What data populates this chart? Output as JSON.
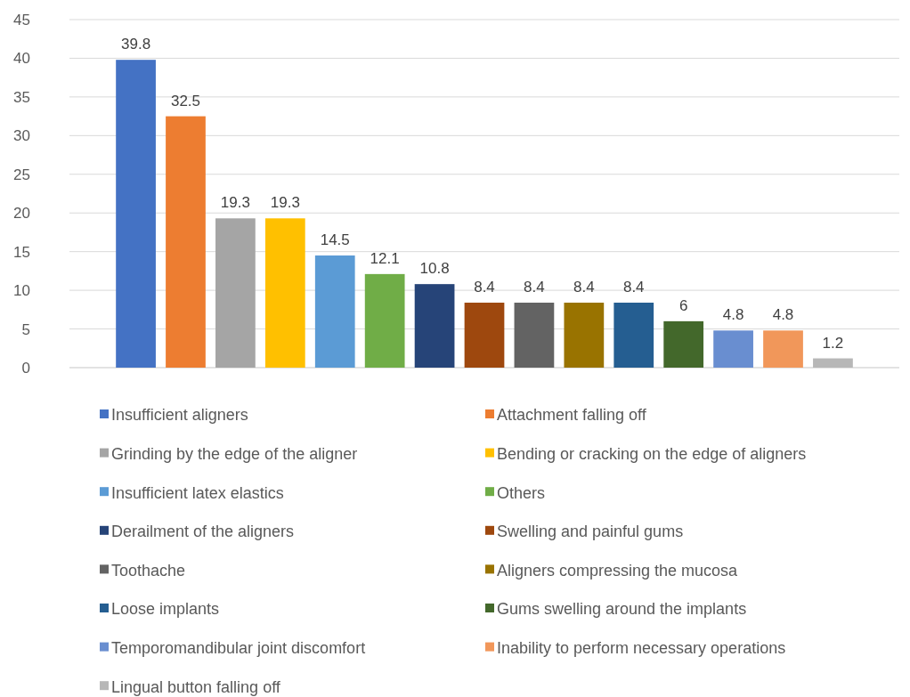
{
  "chart_data": {
    "type": "bar",
    "categories": [
      null
    ],
    "series": [
      {
        "name": "Insufficient aligners",
        "color": "#4472c4",
        "values": [
          39.8
        ]
      },
      {
        "name": "Attachment falling off",
        "color": "#ed7d31",
        "values": [
          32.5
        ]
      },
      {
        "name": "Grinding by the edge of the aligner",
        "color": "#a5a5a5",
        "values": [
          19.3
        ]
      },
      {
        "name": "Bending or cracking on the edge of aligners",
        "color": "#ffc000",
        "values": [
          19.3
        ]
      },
      {
        "name": "Insufficient latex elastics",
        "color": "#5b9bd5",
        "values": [
          14.5
        ]
      },
      {
        "name": "Others",
        "color": "#70ad47",
        "values": [
          12.1
        ]
      },
      {
        "name": "Derailment of the aligners",
        "color": "#264478",
        "values": [
          10.8
        ]
      },
      {
        "name": "Swelling and painful gums",
        "color": "#9e480e",
        "values": [
          8.4
        ]
      },
      {
        "name": "Toothache",
        "color": "#636363",
        "values": [
          8.4
        ]
      },
      {
        "name": "Aligners compressing the mucosa",
        "color": "#997300",
        "values": [
          8.4
        ]
      },
      {
        "name": "Loose implants",
        "color": "#255e91",
        "values": [
          8.4
        ]
      },
      {
        "name": "Gums swelling around the implants",
        "color": "#43682b",
        "values": [
          6
        ]
      },
      {
        "name": "Temporomandibular joint discomfort",
        "color": "#698ed0",
        "values": [
          4.8
        ]
      },
      {
        "name": "Inability to perform necessary operations",
        "color": "#f1975a",
        "values": [
          4.8
        ]
      },
      {
        "name": "Lingual button falling off",
        "color": "#b7b7b7",
        "values": [
          1.2
        ]
      }
    ],
    "ylim": [
      0,
      45
    ],
    "yticks": [
      0,
      5,
      10,
      15,
      20,
      25,
      30,
      35,
      40,
      45
    ],
    "grid": "y",
    "data_labels": true,
    "legend": "bottom",
    "tick_labels": "y"
  }
}
